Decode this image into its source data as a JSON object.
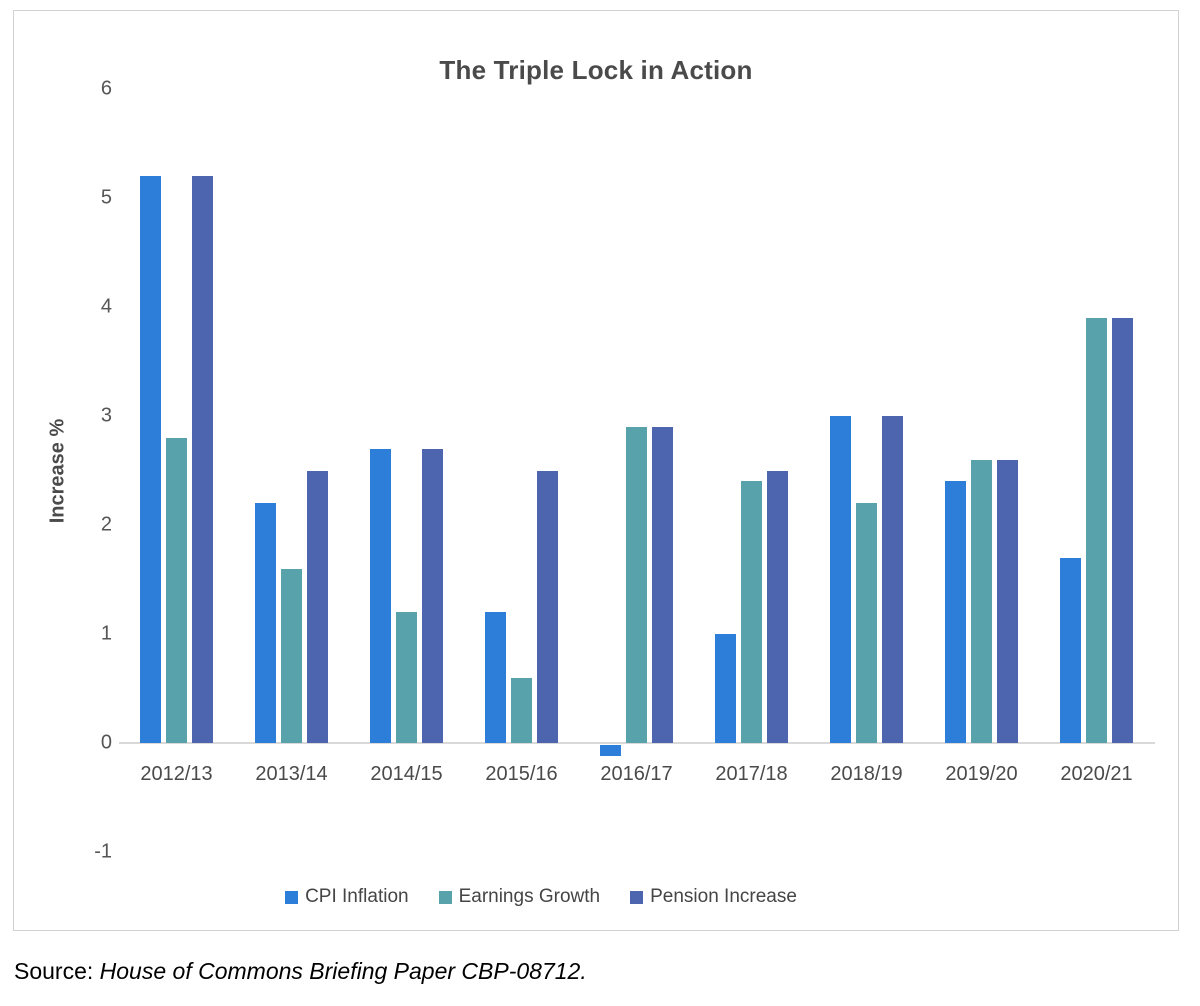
{
  "chart_data": {
    "type": "bar",
    "title": "The Triple Lock in Action",
    "xlabel": "",
    "ylabel": "Increase %",
    "categories": [
      "2012/13",
      "2013/14",
      "2014/15",
      "2015/16",
      "2016/17",
      "2017/18",
      "2018/19",
      "2019/20",
      "2020/21"
    ],
    "series": [
      {
        "name": "CPI Inflation",
        "color": "#2c7ed8",
        "values": [
          5.2,
          2.2,
          2.7,
          1.2,
          -0.1,
          1.0,
          3.0,
          2.4,
          1.7
        ]
      },
      {
        "name": "Earnings Growth",
        "color": "#58a2ab",
        "values": [
          2.8,
          1.6,
          1.2,
          0.6,
          2.9,
          2.4,
          2.2,
          2.6,
          3.9
        ]
      },
      {
        "name": "Pension Increase",
        "color": "#4d64ae",
        "values": [
          5.2,
          2.5,
          2.7,
          2.5,
          2.9,
          2.5,
          3.0,
          2.6,
          3.9
        ]
      }
    ],
    "yticks": [
      6,
      5,
      4,
      3,
      2,
      1,
      0,
      -1
    ],
    "ylim": [
      -1,
      6
    ],
    "grid": false,
    "legend_position": "bottom"
  },
  "source": {
    "prefix": "Source: ",
    "reference": "House of Commons Briefing Paper CBP-08712."
  },
  "colors": {
    "axis_line": "#d9d9d9",
    "frame_border": "#d2d2d2",
    "title_text": "#4a4a4a",
    "tick_text": "#555555"
  }
}
